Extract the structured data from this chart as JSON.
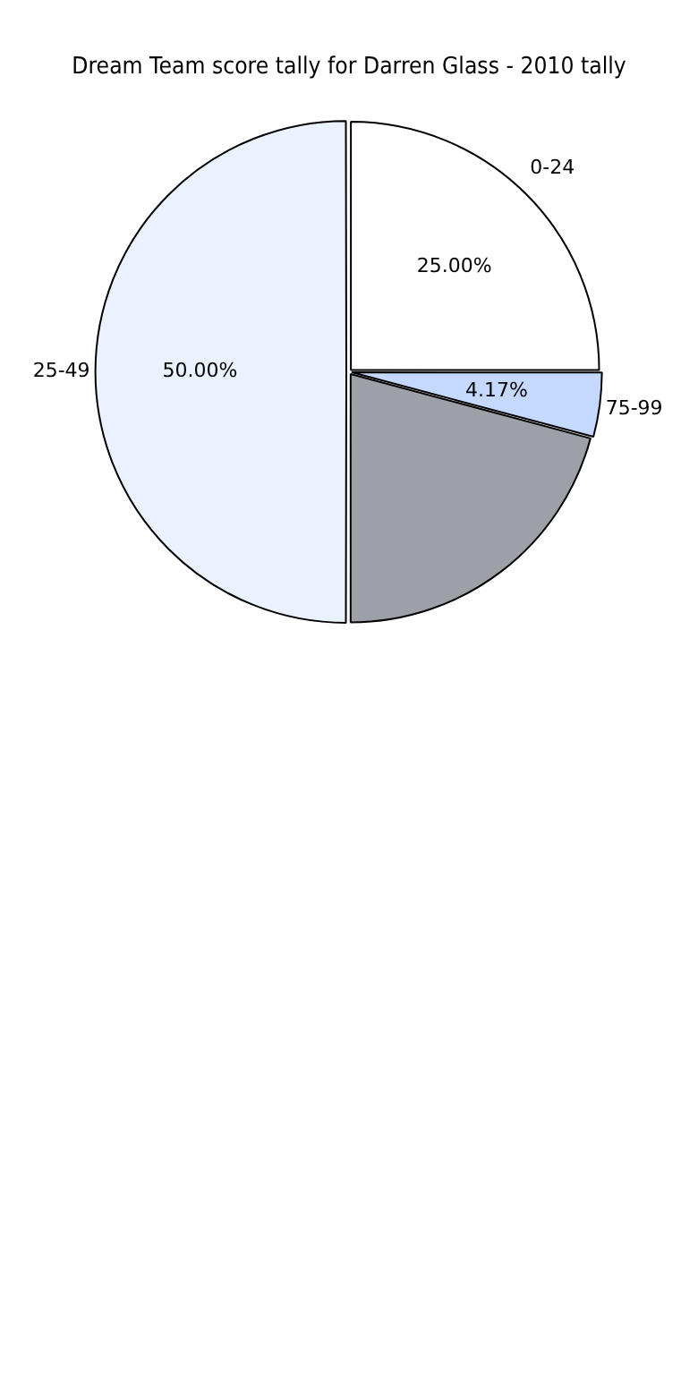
{
  "chart_data": {
    "type": "pie",
    "title": "Dream Team score tally for Darren Glass - 2010 tally",
    "categories": [
      "0-24",
      "75-99",
      null,
      "25-49"
    ],
    "values": [
      25,
      4.17,
      20.83,
      50
    ],
    "colors": [
      "#ffffff",
      "#c5d9ff",
      "#9da0a6",
      "#eaf1ff"
    ],
    "value_labels": [
      "25.00%",
      "4.17%",
      null,
      "50.00%"
    ],
    "legend": false
  }
}
